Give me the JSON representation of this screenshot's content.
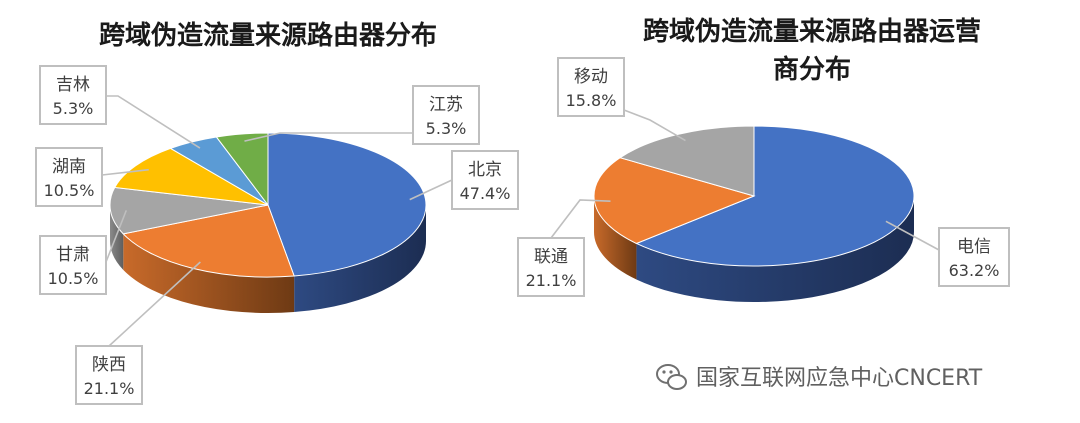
{
  "watermark": {
    "text": "国家互联网应急中心CNCERT",
    "icon": "wechat-icon"
  },
  "chart_data": [
    {
      "type": "pie",
      "title": "跨域伪造流量来源路由器分布",
      "slices": [
        {
          "label": "北京",
          "value": 47.4,
          "value_text": "47.4%",
          "color": "#4472c4"
        },
        {
          "label": "陕西",
          "value": 21.1,
          "value_text": "21.1%",
          "color": "#ed7d31"
        },
        {
          "label": "甘肃",
          "value": 10.5,
          "value_text": "10.5%",
          "color": "#a5a5a5"
        },
        {
          "label": "湖南",
          "value": 10.5,
          "value_text": "10.5%",
          "color": "#ffc000"
        },
        {
          "label": "吉林",
          "value": 5.3,
          "value_text": "5.3%",
          "color": "#5b9bd5"
        },
        {
          "label": "江苏",
          "value": 5.3,
          "value_text": "5.3%",
          "color": "#70ad47"
        }
      ]
    },
    {
      "type": "pie",
      "title": "跨域伪造流量来源路由器运营商分布",
      "title_lines": [
        "跨域伪造流量来源路由器运营",
        "商分布"
      ],
      "slices": [
        {
          "label": "电信",
          "value": 63.2,
          "value_text": "63.2%",
          "color": "#4472c4"
        },
        {
          "label": "联通",
          "value": 21.1,
          "value_text": "21.1%",
          "color": "#ed7d31"
        },
        {
          "label": "移动",
          "value": 15.8,
          "value_text": "15.8%",
          "color": "#a5a5a5"
        }
      ]
    }
  ]
}
